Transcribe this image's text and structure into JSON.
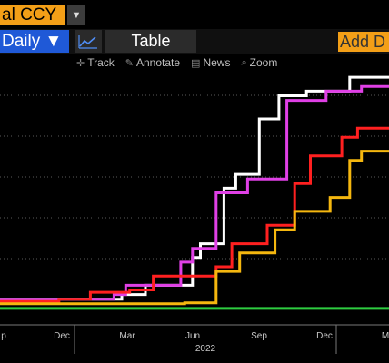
{
  "header": {
    "currency_field": "al CCY",
    "dropdown_icon": "triangle-down-icon"
  },
  "toolbar": {
    "frequency_label": "Daily ▼",
    "chart_icon": "line-chart-icon",
    "table_label": "Table",
    "add_label": "Add D"
  },
  "chart_tools": [
    {
      "icon": "crosshair-icon",
      "glyph": "✛",
      "label": "Track"
    },
    {
      "icon": "annotate-icon",
      "glyph": "✎",
      "label": "Annotate"
    },
    {
      "icon": "news-icon",
      "glyph": "▤",
      "label": "News"
    },
    {
      "icon": "zoom-icon",
      "glyph": "⌕",
      "label": "Zoom"
    }
  ],
  "chart_data": {
    "type": "line",
    "step": true,
    "x_tick_labels": [
      "p",
      "Dec",
      "Mar",
      "Jun",
      "Sep",
      "Dec",
      "M"
    ],
    "year_label": "2022",
    "grid": true,
    "series": [
      {
        "color": "#ffffff",
        "values": [
          [
            0,
            10
          ],
          [
            0.5,
            10
          ],
          [
            1.1,
            10
          ],
          [
            1.55,
            10
          ],
          [
            1.55,
            20
          ],
          [
            1.85,
            20
          ],
          [
            1.85,
            40
          ],
          [
            2.45,
            40
          ],
          [
            2.45,
            100
          ],
          [
            2.55,
            100
          ],
          [
            2.55,
            130
          ],
          [
            2.85,
            130
          ],
          [
            2.85,
            250
          ],
          [
            3.0,
            250
          ],
          [
            3.0,
            280
          ],
          [
            3.3,
            280
          ],
          [
            3.3,
            400
          ],
          [
            3.55,
            400
          ],
          [
            3.55,
            450
          ],
          [
            3.9,
            450
          ],
          [
            3.9,
            460
          ],
          [
            4.45,
            460
          ],
          [
            4.45,
            490
          ],
          [
            4.75,
            490
          ],
          [
            4.75,
            490
          ],
          [
            4.95,
            490
          ]
        ]
      },
      {
        "color": "#e040e6",
        "values": [
          [
            0,
            10
          ],
          [
            0.75,
            10
          ],
          [
            1.45,
            10
          ],
          [
            1.45,
            20
          ],
          [
            1.6,
            20
          ],
          [
            1.6,
            40
          ],
          [
            2.3,
            40
          ],
          [
            2.3,
            90
          ],
          [
            2.45,
            90
          ],
          [
            2.45,
            120
          ],
          [
            2.75,
            120
          ],
          [
            2.75,
            240
          ],
          [
            3.15,
            240
          ],
          [
            3.15,
            270
          ],
          [
            3.65,
            270
          ],
          [
            3.65,
            440
          ],
          [
            4.15,
            440
          ],
          [
            4.15,
            460
          ],
          [
            4.6,
            460
          ],
          [
            4.6,
            470
          ],
          [
            4.95,
            470
          ]
        ]
      },
      {
        "color": "#ff2020",
        "values": [
          [
            0,
            5
          ],
          [
            0.75,
            5
          ],
          [
            0.75,
            10
          ],
          [
            1.15,
            10
          ],
          [
            1.15,
            25
          ],
          [
            1.65,
            25
          ],
          [
            1.65,
            30
          ],
          [
            1.95,
            30
          ],
          [
            1.95,
            60
          ],
          [
            2.75,
            60
          ],
          [
            2.75,
            80
          ],
          [
            2.95,
            80
          ],
          [
            2.95,
            130
          ],
          [
            3.4,
            130
          ],
          [
            3.4,
            170
          ],
          [
            3.75,
            170
          ],
          [
            3.75,
            260
          ],
          [
            3.95,
            260
          ],
          [
            3.95,
            320
          ],
          [
            4.35,
            320
          ],
          [
            4.35,
            360
          ],
          [
            4.55,
            360
          ],
          [
            4.55,
            380
          ],
          [
            4.95,
            380
          ]
        ]
      },
      {
        "color": "#f5b70f",
        "values": [
          [
            0,
            0
          ],
          [
            2.35,
            0
          ],
          [
            2.35,
            2
          ],
          [
            2.75,
            2
          ],
          [
            2.75,
            70
          ],
          [
            3.05,
            70
          ],
          [
            3.05,
            110
          ],
          [
            3.5,
            110
          ],
          [
            3.5,
            160
          ],
          [
            3.75,
            160
          ],
          [
            3.75,
            200
          ],
          [
            4.2,
            200
          ],
          [
            4.2,
            230
          ],
          [
            4.45,
            230
          ],
          [
            4.45,
            310
          ],
          [
            4.6,
            310
          ],
          [
            4.6,
            330
          ],
          [
            4.95,
            330
          ]
        ]
      },
      {
        "color": "#2ecc40",
        "values": [
          [
            0,
            -10
          ],
          [
            4.95,
            -10
          ]
        ]
      }
    ],
    "xlim": [
      0,
      4.95
    ],
    "ylim": [
      -20,
      500
    ]
  }
}
